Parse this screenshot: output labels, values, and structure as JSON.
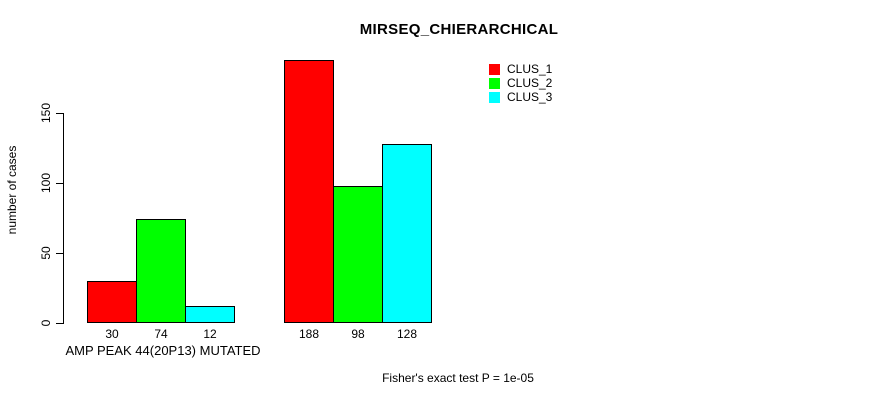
{
  "chart_data": {
    "type": "bar",
    "title": "MIRSEQ_CHIERARCHICAL",
    "xlabel": "",
    "ylabel": "number of cases",
    "categories": [
      "AMP PEAK 44(20P13) MUTATED",
      ""
    ],
    "series": [
      {
        "name": "CLUS_1",
        "color": "#ff0000",
        "values": [
          30,
          188
        ]
      },
      {
        "name": "CLUS_2",
        "color": "#00ff00",
        "values": [
          74,
          98
        ]
      },
      {
        "name": "CLUS_3",
        "color": "#00ffff",
        "values": [
          12,
          128
        ]
      }
    ],
    "bar_value_labels": [
      [
        "30",
        "74",
        "12"
      ],
      [
        "188",
        "98",
        "128"
      ]
    ],
    "yticks": [
      0,
      50,
      100,
      150
    ],
    "ylim": [
      0,
      195
    ],
    "grid": false,
    "legend_position": "top-right",
    "annotation": "Fisher's exact test P = 1e-05",
    "bar_border_color": "#000000",
    "axis_color": "#000000",
    "text_color": "#000000",
    "background_color": "#ffffff"
  }
}
